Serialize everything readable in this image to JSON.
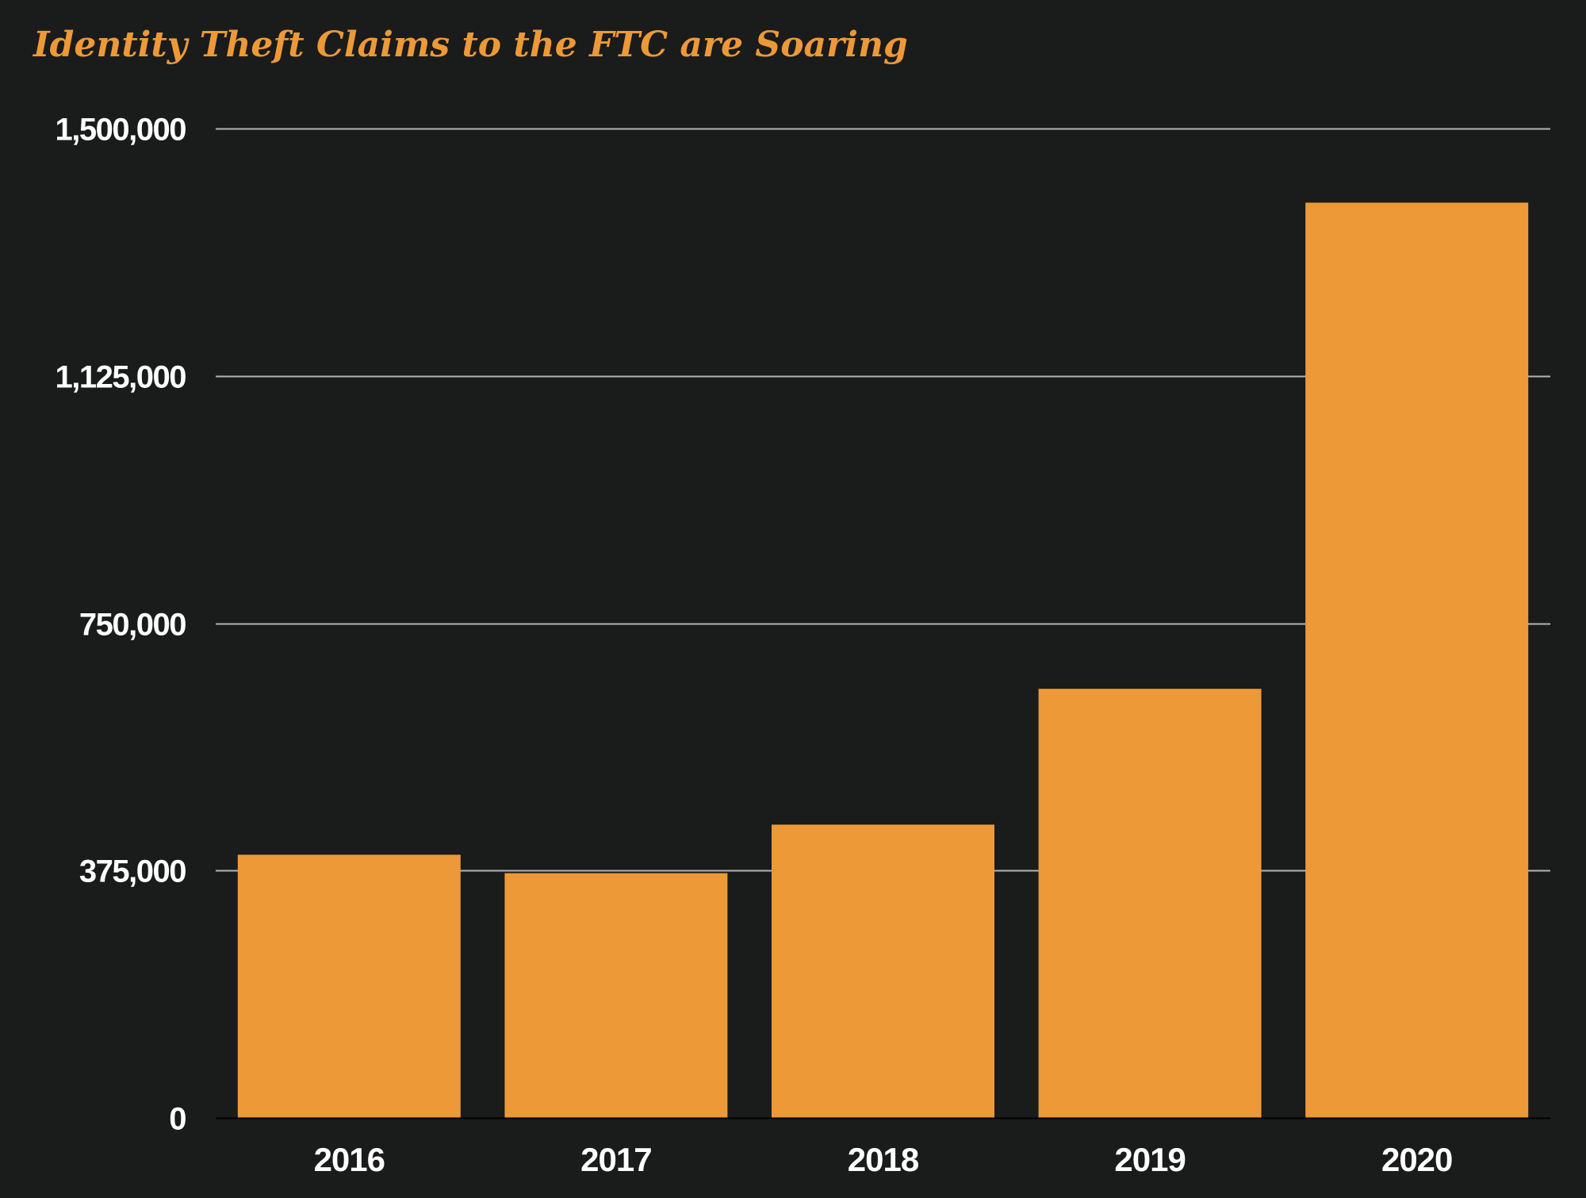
{
  "colors": {
    "background": "#1a1b1b",
    "bar": "#ed9937",
    "title": "#ed9937",
    "grid": "#b4b4b4",
    "axis": "#000000",
    "text": "#ffffff"
  },
  "chart_data": {
    "type": "bar",
    "title": "Identity Theft Claims to the FTC are Soaring",
    "xlabel": "",
    "ylabel": "",
    "categories": [
      "2016",
      "2017",
      "2018",
      "2019",
      "2020"
    ],
    "values": [
      398952,
      371017,
      444602,
      650523,
      1387615
    ],
    "ylim": [
      0,
      1500000
    ],
    "yticks": [
      0,
      375000,
      750000,
      1125000,
      1500000
    ],
    "ytick_labels": [
      "0",
      "375,000",
      "750,000",
      "1,125,000",
      "1,500,000"
    ],
    "grid": true,
    "legend": "none"
  }
}
